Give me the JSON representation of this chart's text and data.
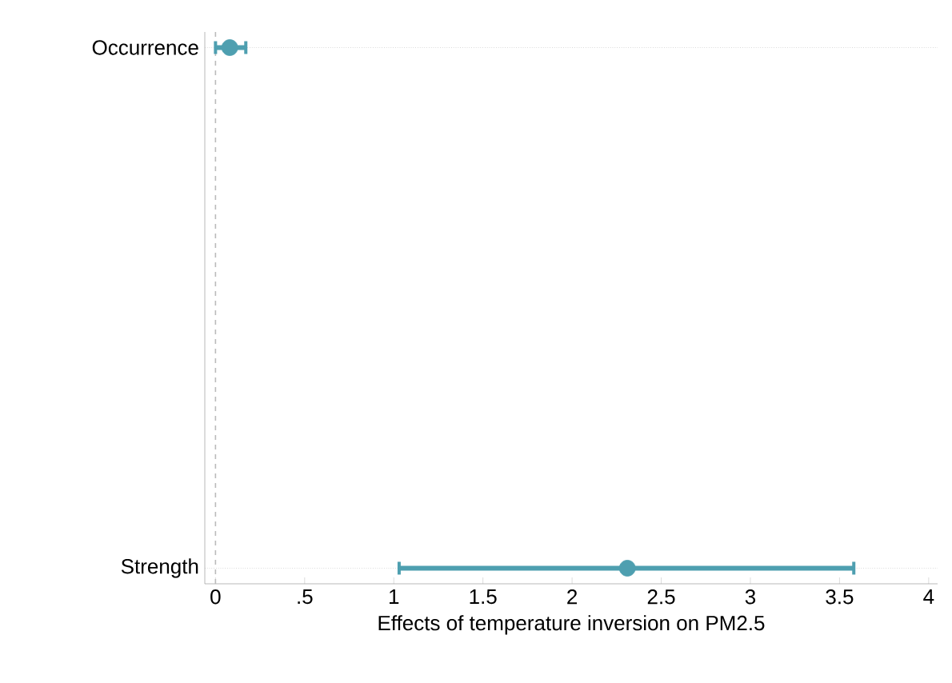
{
  "chart_data": {
    "type": "scatter",
    "orientation": "horizontal",
    "xlabel": "Effects of temperature inversion on PM2.5",
    "categories": [
      "Occurrence",
      "Strength"
    ],
    "values": [
      0.08,
      2.31
    ],
    "errors": [
      [
        0,
        0.17
      ],
      [
        1.03,
        3.58
      ]
    ],
    "color": "#4e9fb0",
    "marker": "circle",
    "xlim": [
      -0.06,
      4.05
    ],
    "xticks": [
      0,
      {
        "value": 0.5,
        "label": ".5"
      },
      1,
      1.5,
      2,
      2.5,
      3,
      3.5,
      4
    ],
    "ref_lines": [
      {
        "axis": "x",
        "value": 0,
        "line_style": "dashed",
        "color": "#bbbbbb"
      }
    ],
    "grid": "y"
  }
}
